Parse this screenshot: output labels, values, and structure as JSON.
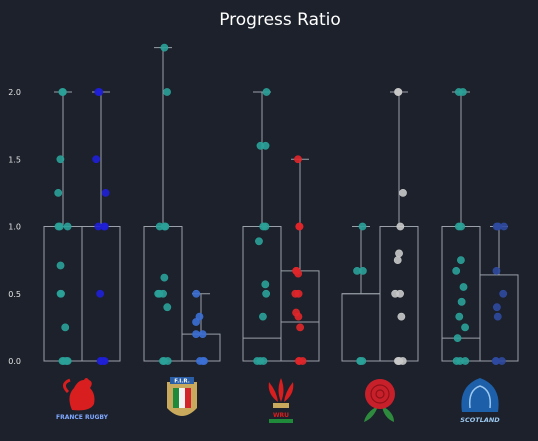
{
  "chart_data": {
    "type": "box-strip",
    "title": "Progress Ratio",
    "xlabel": "",
    "ylabel": "",
    "ylim": [
      -0.03,
      2.45
    ],
    "yticks": [
      "0.0",
      "0.5",
      "1.0",
      "1.5",
      "2.0"
    ],
    "grid": false,
    "legend": "none",
    "colors": {
      "background": "#1c212b",
      "box_edge": "#9aa0a8",
      "text": "#ffffff"
    },
    "groups": [
      {
        "team": "France Rugby",
        "logo_text": "FRANCE RUGBY",
        "series": [
          {
            "color": "#2aa198",
            "box": {
              "whislo": 0,
              "q1": 0,
              "med": 0,
              "q3": 1.0,
              "whishi": 2.0
            },
            "points": [
              2.0,
              2.0,
              1.5,
              1.25,
              1.0,
              1.0,
              1.0,
              0.71,
              0.5,
              0.5,
              0.25,
              0,
              0,
              0,
              0
            ]
          },
          {
            "color": "#1f1fd6",
            "box": {
              "whislo": 0,
              "q1": 0,
              "med": 0,
              "q3": 1.0,
              "whishi": 2.0
            },
            "points": [
              2.0,
              2.0,
              1.5,
              1.25,
              1.0,
              1.0,
              1.0,
              0.5,
              0,
              0,
              0,
              0
            ]
          }
        ]
      },
      {
        "team": "Italy",
        "logo_text": "F.I.R.",
        "series": [
          {
            "color": "#2aa198",
            "box": {
              "whislo": 0,
              "q1": 0,
              "med": 1.0,
              "q3": 1.0,
              "whishi": 2.33
            },
            "points": [
              2.33,
              2.0,
              1.0,
              1.0,
              1.0,
              0.62,
              0.5,
              0.5,
              0.5,
              0.4,
              0,
              0,
              0
            ]
          },
          {
            "color": "#3b6fd4",
            "box": {
              "whislo": 0,
              "q1": 0,
              "med": 0,
              "q3": 0.2,
              "whishi": 0.5
            },
            "points": [
              0.5,
              0.33,
              0.29,
              0.2,
              0.2,
              0,
              0,
              0
            ]
          }
        ]
      },
      {
        "team": "Wales",
        "logo_text": "WRU",
        "series": [
          {
            "color": "#2aa198",
            "box": {
              "whislo": 0,
              "q1": 0,
              "med": 0.17,
              "q3": 1.0,
              "whishi": 2.0
            },
            "points": [
              2.0,
              1.6,
              1.6,
              1.0,
              1.0,
              0.89,
              0.57,
              0.5,
              0.33,
              0,
              0,
              0
            ]
          },
          {
            "color": "#e0262a",
            "box": {
              "whislo": 0,
              "q1": 0,
              "med": 0.29,
              "q3": 0.67,
              "whishi": 1.5
            },
            "points": [
              1.5,
              1.0,
              1.0,
              0.67,
              0.67,
              0.65,
              0.5,
              0.5,
              0.36,
              0.33,
              0.25,
              0,
              0,
              0
            ]
          }
        ]
      },
      {
        "team": "England",
        "logo_text": "",
        "series": [
          {
            "color": "#2aa198",
            "box": {
              "whislo": 0,
              "q1": 0,
              "med": 0.5,
              "q3": 0.5,
              "whishi": 1.0
            },
            "points": [
              1.0,
              0.67,
              0.67,
              0,
              0,
              0
            ]
          },
          {
            "color": "#c8c8c8",
            "box": {
              "whislo": 0,
              "q1": 0,
              "med": 0,
              "q3": 1.0,
              "whishi": 2.0
            },
            "points": [
              2.0,
              2.0,
              1.25,
              1.0,
              0.8,
              0.75,
              0.5,
              0.5,
              0.33,
              0,
              0,
              0,
              0
            ]
          }
        ]
      },
      {
        "team": "Scotland",
        "logo_text": "SCOTLAND",
        "series": [
          {
            "color": "#2aa198",
            "box": {
              "whislo": 0,
              "q1": 0,
              "med": 0.17,
              "q3": 1.0,
              "whishi": 2.0
            },
            "points": [
              2.0,
              2.0,
              1.0,
              1.0,
              0.75,
              0.67,
              0.55,
              0.44,
              0.33,
              0.25,
              0.17,
              0,
              0,
              0
            ]
          },
          {
            "color": "#2f4aa0",
            "box": {
              "whislo": 0,
              "q1": 0,
              "med": 0,
              "q3": 0.64,
              "whishi": 1.0
            },
            "points": [
              1.0,
              1.0,
              1.0,
              0.67,
              0.5,
              0.4,
              0.33,
              0,
              0,
              0
            ]
          }
        ]
      }
    ]
  }
}
